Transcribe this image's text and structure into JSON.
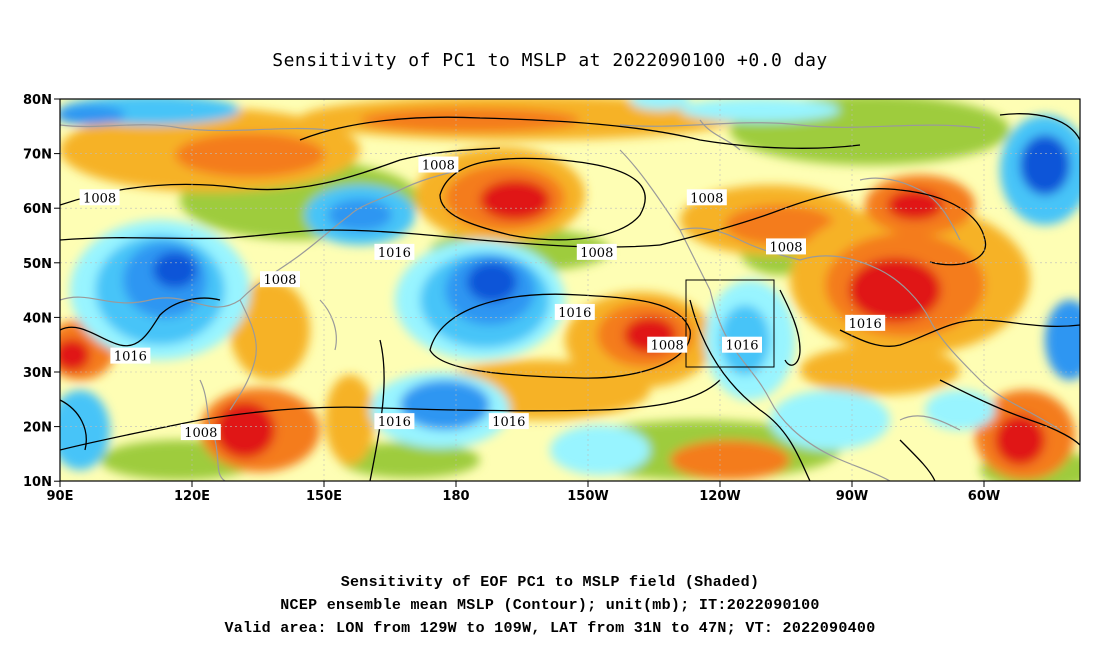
{
  "title": "Sensitivity of PC1 to MSLP at 2022090100 +0.0 day",
  "lat_labels": [
    "80N",
    "70N",
    "60N",
    "50N",
    "40N",
    "30N",
    "20N",
    "10N"
  ],
  "lon_labels": [
    "90E",
    "120E",
    "150E",
    "180",
    "150W",
    "120W",
    "90W",
    "60W"
  ],
  "contour_labels": [
    {
      "text": "1008",
      "lon": 99,
      "lat": 62
    },
    {
      "text": "1008",
      "lon": 176,
      "lat": 68
    },
    {
      "text": "1008",
      "lon": 237,
      "lat": 62
    },
    {
      "text": "1016",
      "lon": 166,
      "lat": 52
    },
    {
      "text": "1008",
      "lon": 212,
      "lat": 52
    },
    {
      "text": "1008",
      "lon": 140,
      "lat": 47
    },
    {
      "text": "1008",
      "lon": 255,
      "lat": 53
    },
    {
      "text": "1016",
      "lon": 207,
      "lat": 41
    },
    {
      "text": "1016",
      "lon": 273,
      "lat": 39
    },
    {
      "text": "1016",
      "lon": 106,
      "lat": 33
    },
    {
      "text": "1008",
      "lon": 228,
      "lat": 35
    },
    {
      "text": "1016",
      "lon": 245,
      "lat": 35
    },
    {
      "text": "1008",
      "lon": 122,
      "lat": 19
    },
    {
      "text": "1016",
      "lon": 166,
      "lat": 21
    },
    {
      "text": "1016",
      "lon": 192,
      "lat": 21
    }
  ],
  "valid_area": {
    "lon_west": "129W",
    "lon_east": "109W",
    "lat_south": "31N",
    "lat_north": "47N"
  },
  "colors": {
    "ramp": [
      "#0a55d8",
      "#2e96f2",
      "#46c4f8",
      "#98f4ff",
      "#fefeb4",
      "#9ecc3c",
      "#f6b226",
      "#f47c1c",
      "#f04a1e",
      "#e01414"
    ],
    "coast": "#9a9a9a",
    "contour": "#000000"
  },
  "captions": [
    "Sensitivity of EOF PC1 to MSLP field (Shaded)",
    "NCEP ensemble mean MSLP (Contour); unit(mb); IT:2022090100",
    "Valid area: LON from 129W to 109W, LAT from 31N to 47N; VT: 2022090400"
  ]
}
